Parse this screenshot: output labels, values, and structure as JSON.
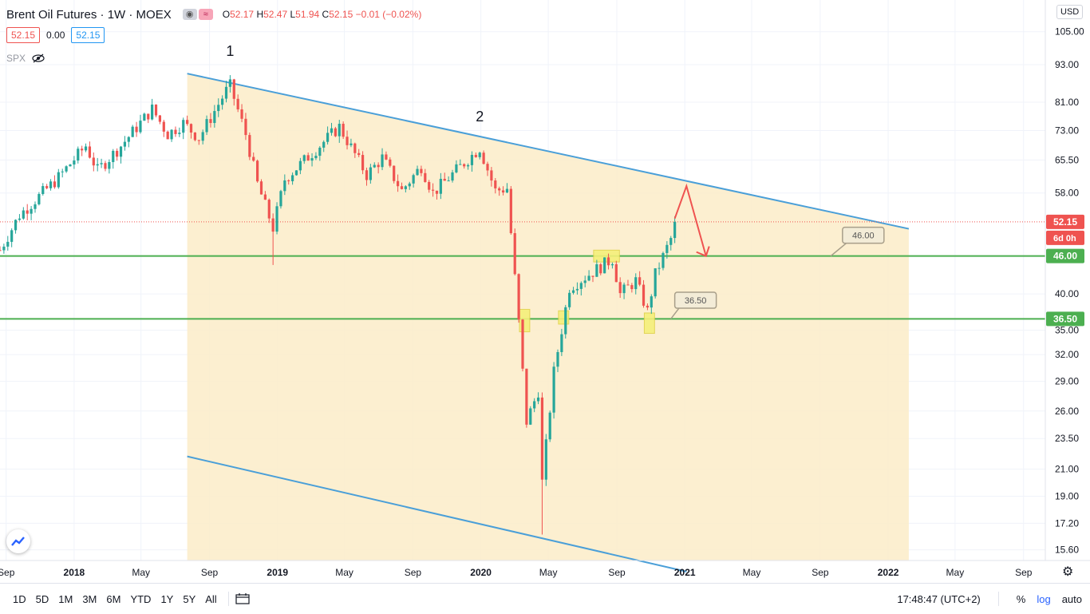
{
  "header": {
    "title": "Brent Oil Futures · 1W · MOEX",
    "ohlc": {
      "o_label": "O",
      "o": "52.17",
      "h_label": "H",
      "h": "52.47",
      "l_label": "L",
      "l": "51.94",
      "c_label": "C",
      "c": "52.15",
      "change": "−0.01 (−0.02%)"
    },
    "value_red": "52.15",
    "value_mid": "0.00",
    "value_blue": "52.15",
    "spx_label": "SPX",
    "currency": "USD"
  },
  "colors": {
    "up": "#26a69a",
    "down": "#ef5350",
    "channel_fill": "#fbecc8",
    "channel_line": "#4a9fd8",
    "hline": "#4caf50",
    "arrow": "#ef5350",
    "highlight": "#f5f07a"
  },
  "chart_data": {
    "type": "candlestick",
    "y_scale": "log",
    "ylim": [
      15.0,
      118.0
    ],
    "x_range": [
      "2017-08-21",
      "2022-10-10"
    ],
    "y_ticks": [
      "105.00",
      "93.00",
      "81.00",
      "73.00",
      "65.50",
      "58.00",
      "52.15",
      "46.00",
      "40.00",
      "36.50",
      "35.00",
      "32.00",
      "29.00",
      "26.00",
      "23.50",
      "21.00",
      "19.00",
      "17.20",
      "15.60"
    ],
    "x_ticks": [
      {
        "label": "Sep",
        "date": "2017-09-01",
        "bold": false
      },
      {
        "label": "2018",
        "date": "2018-01-01",
        "bold": true
      },
      {
        "label": "May",
        "date": "2018-05-01",
        "bold": false
      },
      {
        "label": "Sep",
        "date": "2018-09-01",
        "bold": false
      },
      {
        "label": "2019",
        "date": "2019-01-01",
        "bold": true
      },
      {
        "label": "May",
        "date": "2019-05-01",
        "bold": false
      },
      {
        "label": "Sep",
        "date": "2019-09-01",
        "bold": false
      },
      {
        "label": "2020",
        "date": "2020-01-01",
        "bold": true
      },
      {
        "label": "May",
        "date": "2020-05-01",
        "bold": false
      },
      {
        "label": "Sep",
        "date": "2020-09-01",
        "bold": false
      },
      {
        "label": "2021",
        "date": "2021-01-01",
        "bold": true
      },
      {
        "label": "May",
        "date": "2021-05-01",
        "bold": false
      },
      {
        "label": "Sep",
        "date": "2021-09-01",
        "bold": false
      },
      {
        "label": "2022",
        "date": "2022-01-01",
        "bold": true
      },
      {
        "label": "May",
        "date": "2022-05-01",
        "bold": false
      },
      {
        "label": "Sep",
        "date": "2022-09-01",
        "bold": false
      }
    ],
    "price_path": [
      [
        "2017-08-21",
        47.0
      ],
      [
        "2017-09-25",
        53.5
      ],
      [
        "2017-12-01",
        61.0
      ],
      [
        "2018-01-22",
        69.0
      ],
      [
        "2018-02-12",
        63.0
      ],
      [
        "2018-03-26",
        69.0
      ],
      [
        "2018-05-21",
        79.0
      ],
      [
        "2018-06-18",
        72.0
      ],
      [
        "2018-07-16",
        75.0
      ],
      [
        "2018-08-13",
        71.0
      ],
      [
        "2018-10-01",
        84.5
      ],
      [
        "2018-10-08",
        86.0
      ],
      [
        "2018-11-05",
        72.0
      ],
      [
        "2018-11-26",
        60.0
      ],
      [
        "2018-12-24",
        51.0
      ],
      [
        "2019-01-14",
        61.0
      ],
      [
        "2019-04-22",
        74.0
      ],
      [
        "2019-06-10",
        62.0
      ],
      [
        "2019-07-08",
        66.0
      ],
      [
        "2019-08-12",
        58.5
      ],
      [
        "2019-09-16",
        64.0
      ],
      [
        "2019-10-07",
        58.0
      ],
      [
        "2019-12-30",
        68.5
      ],
      [
        "2020-01-27",
        58.5
      ],
      [
        "2020-02-17",
        59.0
      ],
      [
        "2020-03-09",
        36.0
      ],
      [
        "2020-03-23",
        25.0
      ],
      [
        "2020-04-13",
        28.0
      ],
      [
        "2020-04-20",
        20.0
      ],
      [
        "2020-05-11",
        30.0
      ],
      [
        "2020-06-08",
        41.0
      ],
      [
        "2020-08-24",
        45.5
      ],
      [
        "2020-09-07",
        40.0
      ],
      [
        "2020-10-05",
        42.0
      ],
      [
        "2020-10-26",
        37.5
      ],
      [
        "2020-11-09",
        43.0
      ],
      [
        "2020-12-07",
        49.0
      ],
      [
        "2020-12-14",
        52.15
      ]
    ],
    "special_wicks": [
      {
        "date": "2018-12-24",
        "low": 44.5
      },
      {
        "date": "2020-04-20",
        "low": 16.5
      }
    ],
    "channel": {
      "upper": [
        [
          "2018-07-23",
          90.0
        ],
        [
          "2022-01-31",
          51.0
        ]
      ],
      "lower": [
        [
          "2018-07-23",
          22.0
        ],
        [
          "2021-01-04",
          14.4
        ]
      ],
      "right_date": "2022-02-07"
    },
    "horizontal_levels": [
      {
        "value": 46.0,
        "label": "46.00"
      },
      {
        "value": 36.5,
        "label": "36.50"
      }
    ],
    "current_price": {
      "value": 52.15,
      "label": "52.15",
      "countdown": "6d 0h"
    },
    "callouts": [
      {
        "text": "46.00",
        "box_at": [
          "2021-10-11",
          49.8
        ],
        "point": [
          "2021-09-20",
          46.0
        ]
      },
      {
        "text": "36.50",
        "box_at": [
          "2020-12-14",
          39.2
        ],
        "point": [
          "2020-12-07",
          36.5
        ]
      }
    ],
    "wave_labels": [
      {
        "text": "1",
        "at": [
          "2018-10-08",
          96.0
        ]
      },
      {
        "text": "2",
        "at": [
          "2019-12-30",
          75.5
        ]
      }
    ],
    "projection_arrow": [
      [
        "2020-12-14",
        52.8
      ],
      [
        "2021-01-04",
        59.5
      ],
      [
        "2021-02-08",
        46.0
      ]
    ],
    "highlights": [
      {
        "from": "2020-03-16",
        "to": "2020-03-23",
        "low": 34.8,
        "high": 37.8
      },
      {
        "from": "2020-05-25",
        "to": "2020-06-01",
        "low": 35.8,
        "high": 37.6
      },
      {
        "from": "2020-07-27",
        "to": "2020-08-31",
        "low": 45.0,
        "high": 47.0
      },
      {
        "from": "2020-10-26",
        "to": "2020-11-02",
        "low": 34.6,
        "high": 37.3
      }
    ]
  },
  "bottom": {
    "ranges": [
      "1D",
      "5D",
      "1M",
      "3M",
      "6M",
      "YTD",
      "1Y",
      "5Y",
      "All"
    ],
    "time": "17:48:47 (UTC+2)",
    "percent": "%",
    "log": "log",
    "auto": "auto"
  }
}
